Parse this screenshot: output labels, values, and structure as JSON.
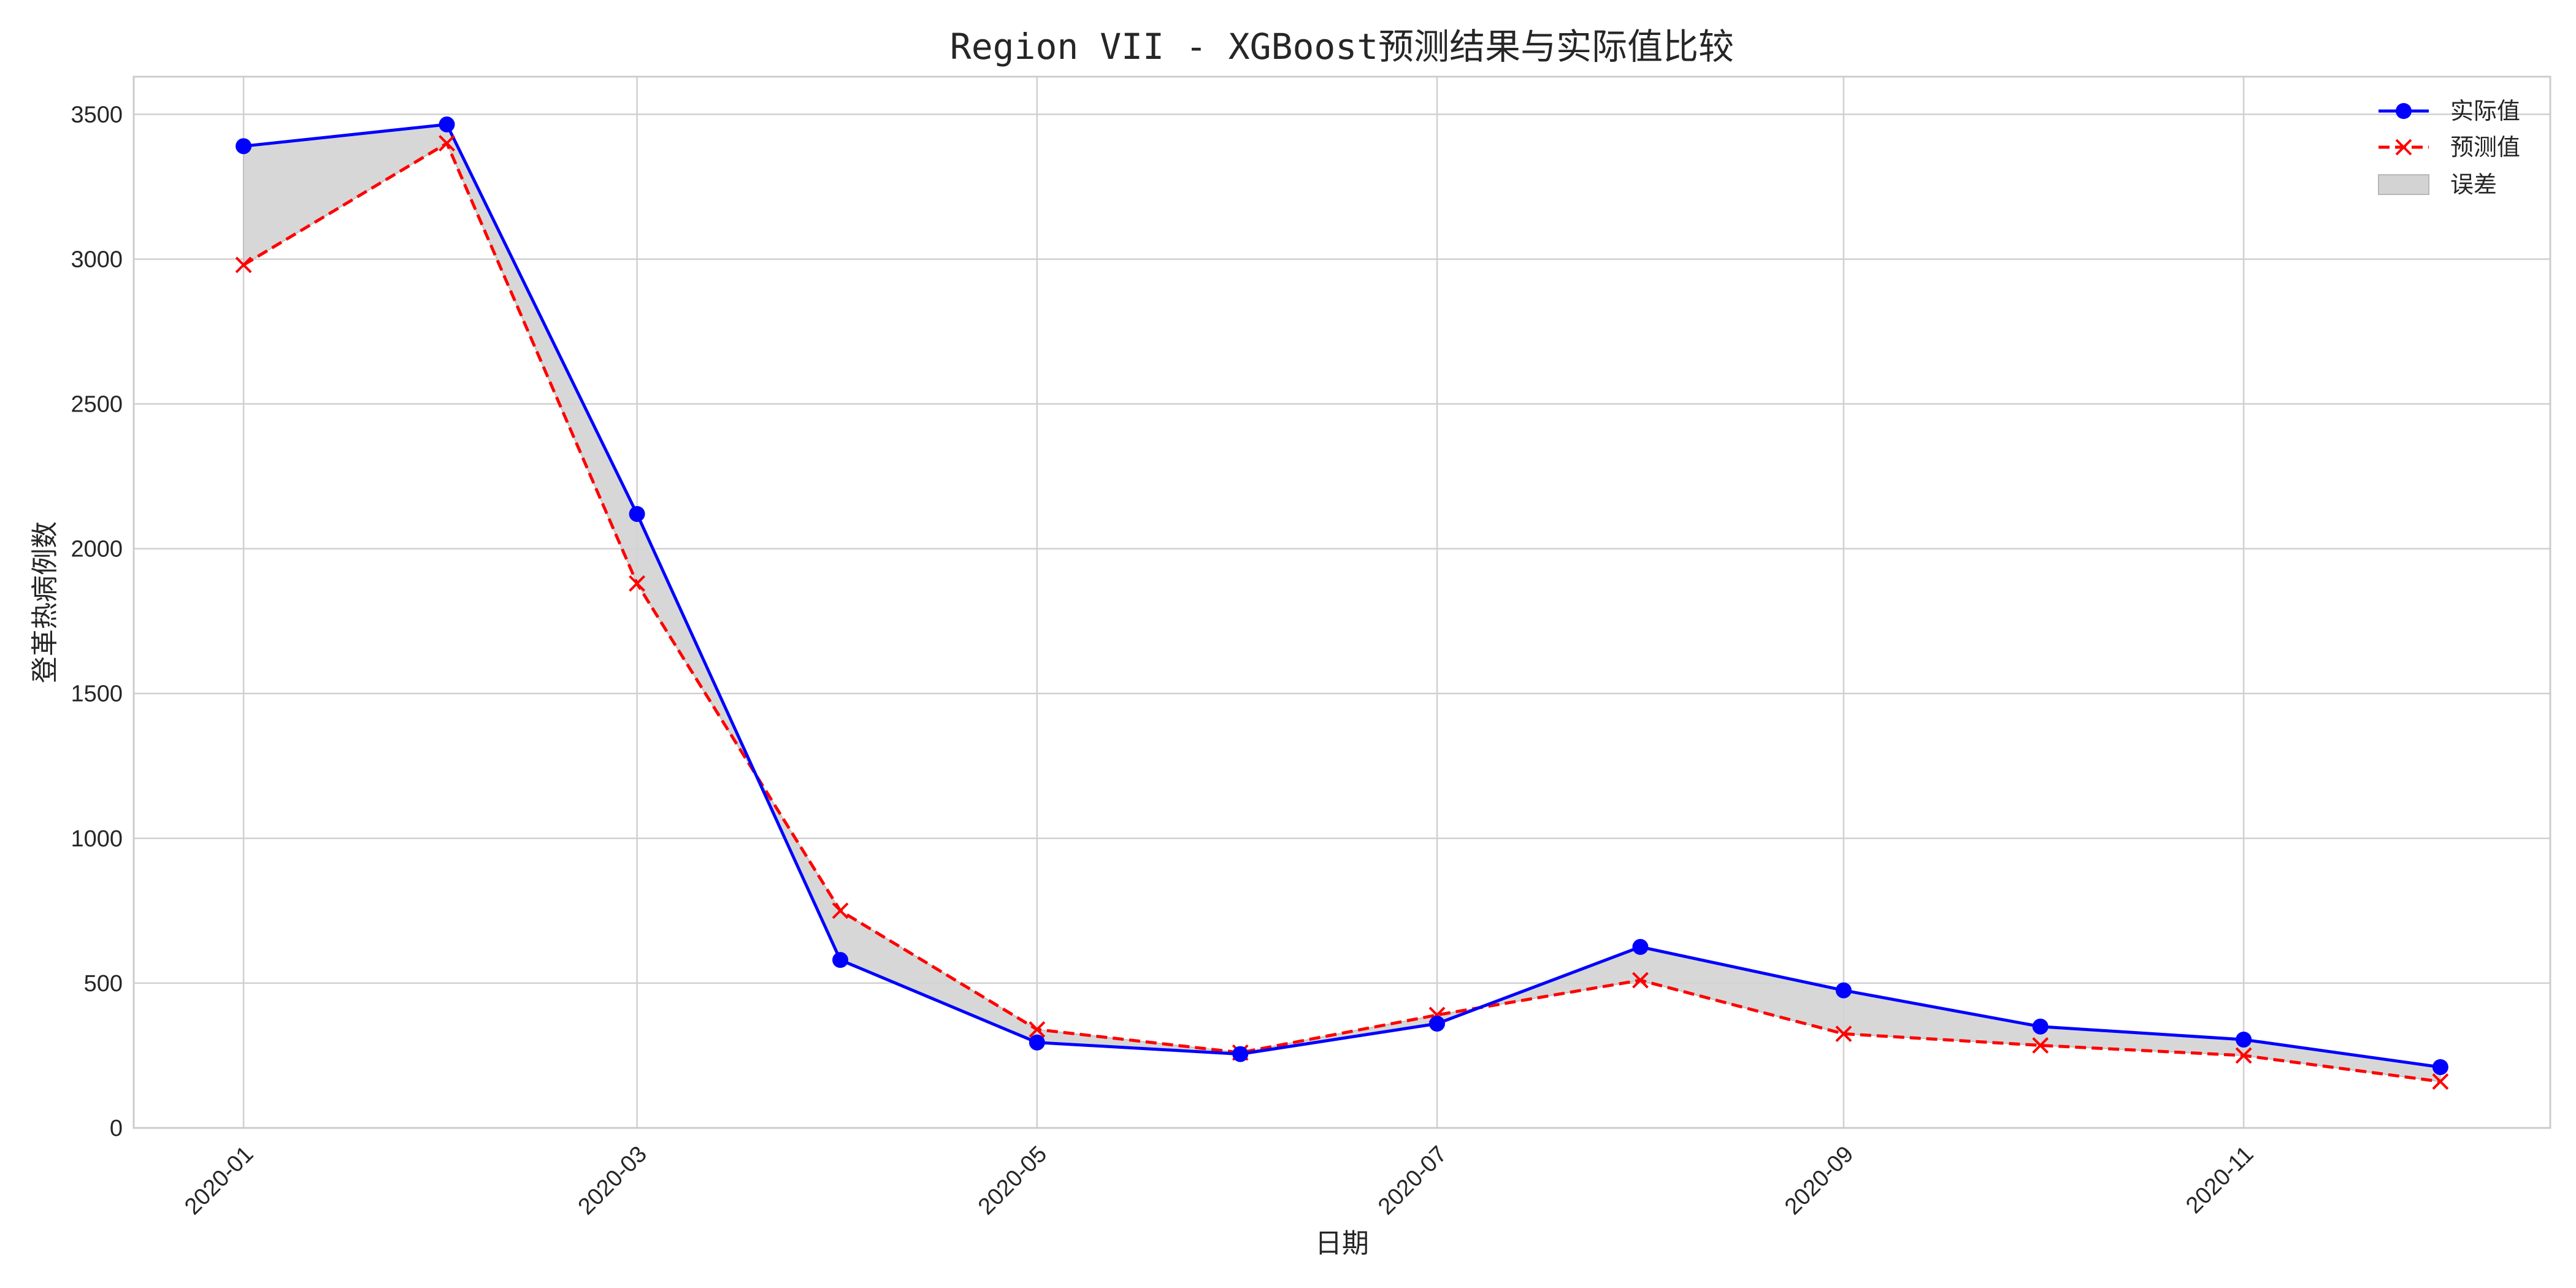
{
  "chart_data": {
    "type": "line",
    "title": "Region VII - XGBoost预测结果与实际值比较",
    "xlabel": "日期",
    "ylabel": "登革热病例数",
    "x": [
      "2020-01",
      "2020-02",
      "2020-03",
      "2020-04",
      "2020-05",
      "2020-06",
      "2020-07",
      "2020-08",
      "2020-09",
      "2020-10",
      "2020-11",
      "2020-12"
    ],
    "x_day_index": [
      0,
      31,
      60,
      91,
      121,
      152,
      182,
      213,
      244,
      274,
      305,
      335
    ],
    "xticks": [
      {
        "label": "2020-01",
        "day": 0
      },
      {
        "label": "2020-03",
        "day": 60
      },
      {
        "label": "2020-05",
        "day": 121
      },
      {
        "label": "2020-07",
        "day": 182
      },
      {
        "label": "2020-09",
        "day": 244
      },
      {
        "label": "2020-11",
        "day": 305
      }
    ],
    "xlim_days": [
      -16.75,
      351.75
    ],
    "yticks": [
      0,
      500,
      1000,
      1500,
      2000,
      2500,
      3000,
      3500
    ],
    "ylim": [
      0,
      3630
    ],
    "grid": true,
    "legend_position": "top-right",
    "series": [
      {
        "name": "实际值",
        "color": "#0000ff",
        "style": "solid",
        "marker": "circle",
        "values": [
          3390,
          3465,
          2120,
          580,
          295,
          255,
          360,
          625,
          475,
          350,
          305,
          210
        ]
      },
      {
        "name": "预测值",
        "color": "#ff0000",
        "style": "dashed",
        "marker": "x",
        "values": [
          2980,
          3400,
          1880,
          750,
          340,
          260,
          390,
          510,
          325,
          285,
          250,
          160
        ]
      }
    ],
    "fill": {
      "name": "误差",
      "color": "#d3d3d3"
    }
  }
}
